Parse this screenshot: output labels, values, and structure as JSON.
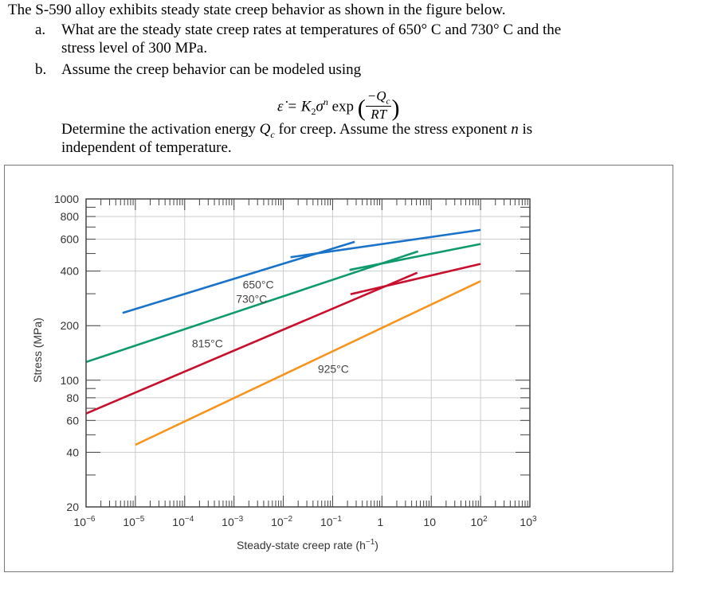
{
  "question": {
    "intro": "The S-590 alloy exhibits steady state creep behavior as shown in the figure below.",
    "part_a_marker": "a.",
    "part_a_line1": "What are the steady state creep rates at temperatures of 650° C and 730° C and the",
    "part_a_line2": "stress level of 300 MPa.",
    "part_b_marker": "b.",
    "part_b_line1": "Assume the creep behavior can be modeled using",
    "equation_lhs": "ε̇ = K",
    "equation_sub": "2",
    "equation_sigma": "σ",
    "equation_exp_n": "n",
    "equation_exp": "exp",
    "equation_num": "−Q",
    "equation_num_sub": "c",
    "equation_den": "RT",
    "part_b_line2_pre": "Determine the activation energy ",
    "part_b_q": "Q",
    "part_b_q_sub": "c",
    "part_b_line2_post": " for creep.  Assume the stress exponent ",
    "part_b_n": "n",
    "part_b_line2_end": " is",
    "part_b_line3": "independent of temperature."
  },
  "chart_data": {
    "type": "line",
    "xscale": "log",
    "yscale": "log",
    "xlabel": "Steady-state creep rate (h",
    "xlabel_sup": "−1",
    "xlabel_close": ")",
    "ylabel": "Stress (MPa)",
    "xlim": [
      1e-06,
      1000
    ],
    "ylim": [
      20,
      1000
    ],
    "grid": true,
    "x_ticks": [
      {
        "base": "10",
        "exp": "−6",
        "value": 1e-06
      },
      {
        "base": "10",
        "exp": "−5",
        "value": 1e-05
      },
      {
        "base": "10",
        "exp": "−4",
        "value": 0.0001
      },
      {
        "base": "10",
        "exp": "−3",
        "value": 0.001
      },
      {
        "base": "10",
        "exp": "−2",
        "value": 0.01
      },
      {
        "base": "10",
        "exp": "−1",
        "value": 0.1
      },
      {
        "base": "1",
        "exp": "",
        "value": 1
      },
      {
        "base": "10",
        "exp": "",
        "value": 10
      },
      {
        "base": "10",
        "exp": "2",
        "value": 100
      },
      {
        "base": "10",
        "exp": "3",
        "value": 1000
      }
    ],
    "y_ticks": [
      1000,
      800,
      600,
      400,
      200,
      100,
      80,
      60,
      40,
      20
    ],
    "series": [
      {
        "name": "650°C",
        "color": "#1a73c8",
        "segments": [
          [
            [
              5.5e-06,
              235
            ],
            [
              0.28,
              580
            ]
          ],
          [
            [
              0.014,
              477
            ],
            [
              100,
              675
            ]
          ]
        ],
        "label_at": [
          0.0015,
          320
        ]
      },
      {
        "name": "730°C",
        "color": "#0f9a6e",
        "segments": [
          [
            [
              1e-06,
              126
            ],
            [
              5.4,
              514
            ]
          ],
          [
            [
              0.22,
              406
            ],
            [
              100,
              564
            ]
          ]
        ],
        "label_at": [
          0.0011,
          268
        ]
      },
      {
        "name": "815°C",
        "color": "#c8102e",
        "segments": [
          [
            [
              1e-06,
              65.5
            ],
            [
              5.2,
              392
            ]
          ],
          [
            [
              0.23,
              298
            ],
            [
              100,
              438
            ]
          ]
        ],
        "label_at": [
          0.00014,
          152
        ]
      },
      {
        "name": "925°C",
        "color": "#f7941d",
        "segments": [
          [
            [
              1e-05,
              44
            ],
            [
              100,
              352
            ]
          ]
        ],
        "label_at": [
          0.05,
          110
        ]
      }
    ]
  }
}
